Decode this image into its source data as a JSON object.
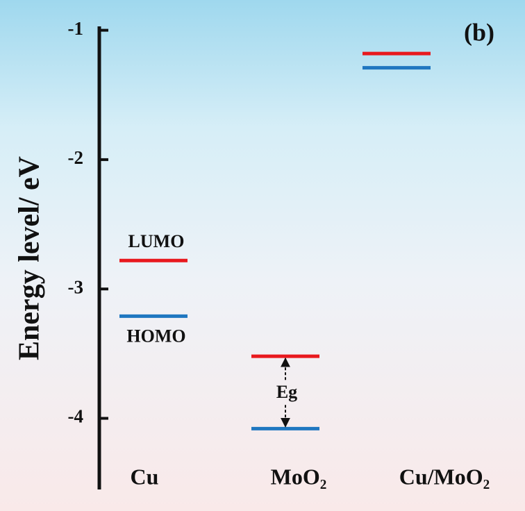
{
  "chart_data": {
    "type": "energy-level",
    "y_label": "Energy level/ eV",
    "panel_label": "(b)",
    "categories": [
      "Cu",
      "MoO₂",
      "Cu/MoO₂"
    ],
    "series": [
      {
        "name": "LUMO",
        "color": "#e8191e",
        "values": [
          -2.78,
          -3.52,
          -1.18
        ]
      },
      {
        "name": "HOMO",
        "color": "#1f77c0",
        "values": [
          -3.21,
          -4.08,
          -1.29
        ]
      }
    ],
    "annotation": "Eg",
    "ylim": [
      -4.55,
      -0.97
    ],
    "yticks": [
      -1,
      -2,
      -3,
      -4
    ]
  }
}
